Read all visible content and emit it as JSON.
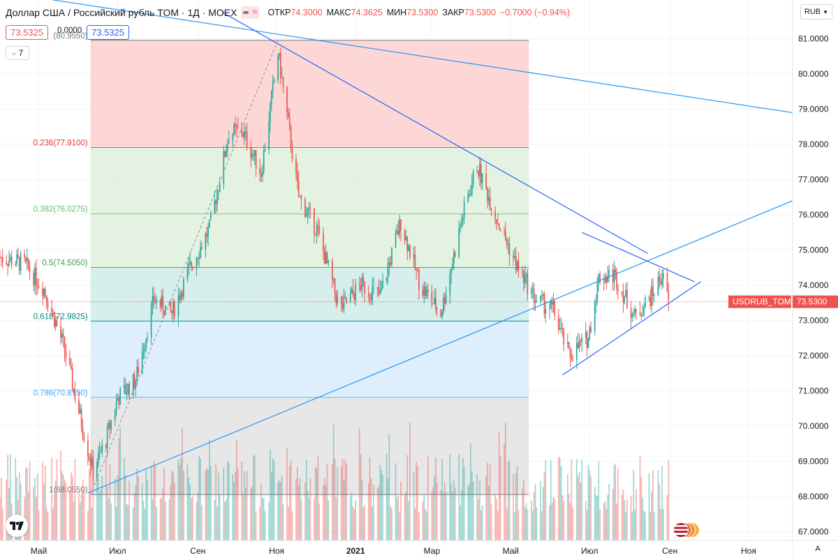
{
  "header": {
    "title": "Доллар США / Российский рубль TOM · 1Д · MOEX",
    "ohlc": [
      {
        "label": "ОТКР",
        "value": "74.3000"
      },
      {
        "label": "МАКС",
        "value": "74.3625"
      },
      {
        "label": "МИН",
        "value": "73.5300"
      },
      {
        "label": "ЗАКР",
        "value": "73.5300"
      }
    ],
    "change": "−0.7000 (−0.94%)"
  },
  "quote": {
    "bid": "73.5325",
    "spread": "0.0000",
    "ask": "73.5325"
  },
  "indicators_toggle": {
    "count": "7"
  },
  "currency_button": "RUB",
  "auto_scale": "A",
  "colors": {
    "up": "#26a69a",
    "down": "#ef5350",
    "trendline": "#2962ff",
    "trendline_light": "#2196f3",
    "fib_red_zone": "#fcd3d2",
    "fib_green_zone": "#e0f1de",
    "fib_teal_zone": "#d2ecea",
    "fib_blue_zone": "#dbecfc",
    "fib_gray_zone": "#e4e4e6"
  },
  "chart_data": {
    "type": "candlestick",
    "symbol_label": "USDRUB_TOM",
    "last_price": 73.53,
    "last_price_label": "73.5300",
    "x_labels": [
      {
        "label": "Май",
        "date": "2020-05-01"
      },
      {
        "label": "Июл",
        "date": "2020-07-01"
      },
      {
        "label": "Сен",
        "date": "2020-09-01"
      },
      {
        "label": "Ноя",
        "date": "2020-11-01"
      },
      {
        "label": "2021",
        "date": "2021-01-01",
        "bold": true
      },
      {
        "label": "Мар",
        "date": "2021-03-01"
      },
      {
        "label": "Май",
        "date": "2021-05-01"
      },
      {
        "label": "Июл",
        "date": "2021-07-01"
      },
      {
        "label": "Сен",
        "date": "2021-09-01"
      },
      {
        "label": "Ноя",
        "date": "2021-11-01"
      }
    ],
    "y_ticks": [
      "67.0000",
      "68.0000",
      "69.0000",
      "70.0000",
      "71.0000",
      "72.0000",
      "73.0000",
      "74.0000",
      "75.0000",
      "76.0000",
      "77.0000",
      "78.0000",
      "79.0000",
      "80.0000",
      "81.0000"
    ],
    "y_range": [
      66.75,
      82.1
    ],
    "x_range": [
      "2020-04-01",
      "2021-12-05"
    ],
    "volume_scale_max": 4,
    "fibonacci": {
      "from": {
        "date": "2020-06-10",
        "price": 68.055
      },
      "to": {
        "date": "2020-11-02",
        "price": 80.955
      },
      "end_date": "2021-05-15",
      "levels": [
        {
          "ratio": 0,
          "label": "1(68.0550)",
          "price": 68.055
        },
        {
          "ratio": 0.236,
          "label": "0.236(77.9100)",
          "price": 77.91
        },
        {
          "ratio": 0.382,
          "label": "0.382(76.0275)",
          "price": 76.0275
        },
        {
          "ratio": 0.5,
          "label": "0.5(74.5050)",
          "price": 74.505
        },
        {
          "ratio": 0.618,
          "label": "0.618(72.9825)",
          "price": 72.9825
        },
        {
          "ratio": 0.786,
          "label": "0.786(70.8150)",
          "price": 70.815
        },
        {
          "ratio": 1,
          "label": "(80.9550)",
          "price": 80.955
        }
      ]
    },
    "trendlines": [
      {
        "from": {
          "date": "2020-03-20",
          "price": 82.4
        },
        "to": {
          "date": "2021-12-05",
          "price": 78.9
        },
        "color": "#2196f3"
      },
      {
        "from": {
          "date": "2020-09-20",
          "price": 81.75
        },
        "to": {
          "date": "2021-08-15",
          "price": 74.9
        },
        "color": "#2962ff"
      },
      {
        "from": {
          "date": "2020-06-08",
          "price": 68.1
        },
        "to": {
          "date": "2021-12-05",
          "price": 76.4
        },
        "color": "#2196f3"
      },
      {
        "from": {
          "date": "2021-06-10",
          "price": 71.45
        },
        "to": {
          "date": "2021-09-25",
          "price": 74.1
        },
        "color": "#2962ff"
      },
      {
        "from": {
          "date": "2021-06-25",
          "price": 75.5
        },
        "to": {
          "date": "2021-09-20",
          "price": 74.1
        },
        "color": "#2962ff"
      },
      {
        "from": {
          "date": "2020-06-10",
          "price": 68.055
        },
        "to": {
          "date": "2020-11-02",
          "price": 80.955
        },
        "color": "#9e9e9e",
        "dashed": true
      }
    ],
    "close_anchors": [
      {
        "date": "2020-04-01",
        "close": 74.8
      },
      {
        "date": "2020-04-20",
        "close": 74.6
      },
      {
        "date": "2020-05-05",
        "close": 73.9
      },
      {
        "date": "2020-05-20",
        "close": 72.3
      },
      {
        "date": "2020-06-05",
        "close": 69.8
      },
      {
        "date": "2020-06-12",
        "close": 68.7
      },
      {
        "date": "2020-06-22",
        "close": 69.6
      },
      {
        "date": "2020-07-01",
        "close": 70.8
      },
      {
        "date": "2020-07-15",
        "close": 71.3
      },
      {
        "date": "2020-07-29",
        "close": 73.6
      },
      {
        "date": "2020-08-12",
        "close": 73.2
      },
      {
        "date": "2020-08-26",
        "close": 74.5
      },
      {
        "date": "2020-09-10",
        "close": 75.6
      },
      {
        "date": "2020-09-25",
        "close": 78.3
      },
      {
        "date": "2020-10-05",
        "close": 78.4
      },
      {
        "date": "2020-10-20",
        "close": 77.2
      },
      {
        "date": "2020-11-02",
        "close": 80.6
      },
      {
        "date": "2020-11-18",
        "close": 76.5
      },
      {
        "date": "2020-12-02",
        "close": 75.6
      },
      {
        "date": "2020-12-20",
        "close": 73.3
      },
      {
        "date": "2021-01-05",
        "close": 74.0
      },
      {
        "date": "2021-01-20",
        "close": 73.7
      },
      {
        "date": "2021-02-05",
        "close": 75.8
      },
      {
        "date": "2021-02-20",
        "close": 74.0
      },
      {
        "date": "2021-03-08",
        "close": 73.2
      },
      {
        "date": "2021-03-25",
        "close": 76.0
      },
      {
        "date": "2021-04-05",
        "close": 77.4
      },
      {
        "date": "2021-04-20",
        "close": 75.9
      },
      {
        "date": "2021-05-05",
        "close": 74.6
      },
      {
        "date": "2021-05-20",
        "close": 73.6
      },
      {
        "date": "2021-06-03",
        "close": 73.3
      },
      {
        "date": "2021-06-15",
        "close": 72.0
      },
      {
        "date": "2021-06-30",
        "close": 72.5
      },
      {
        "date": "2021-07-08",
        "close": 74.2
      },
      {
        "date": "2021-07-20",
        "close": 74.3
      },
      {
        "date": "2021-08-05",
        "close": 73.1
      },
      {
        "date": "2021-08-18",
        "close": 73.7
      },
      {
        "date": "2021-08-26",
        "close": 74.3
      },
      {
        "date": "2021-08-31",
        "close": 73.53
      }
    ]
  }
}
